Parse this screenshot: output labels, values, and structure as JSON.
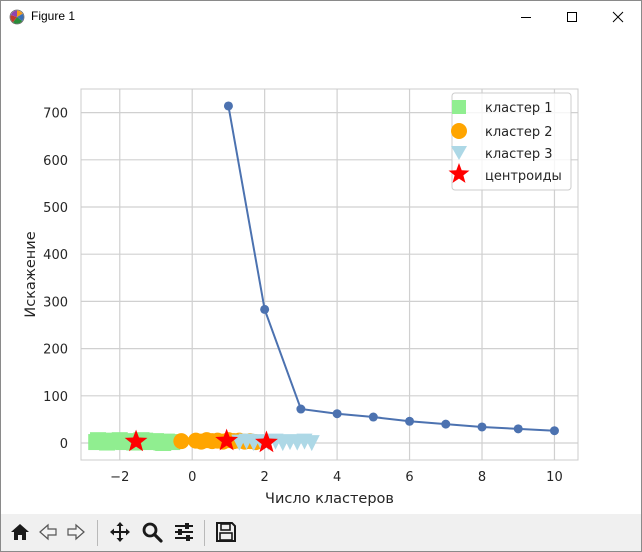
{
  "window": {
    "title": "Figure 1",
    "icon": "matplotlib-logo-icon",
    "controls": [
      "minimize-icon",
      "maximize-icon",
      "close-icon"
    ]
  },
  "toolbar": {
    "buttons": [
      {
        "name": "home-button",
        "icon": "home-icon"
      },
      {
        "name": "back-button",
        "icon": "back-arrow-icon"
      },
      {
        "name": "forward-button",
        "icon": "forward-arrow-icon"
      },
      {
        "name": "pan-button",
        "icon": "move-icon"
      },
      {
        "name": "zoom-button",
        "icon": "magnifier-icon"
      },
      {
        "name": "configure-subplots-button",
        "icon": "sliders-icon"
      },
      {
        "name": "save-button",
        "icon": "floppy-disk-icon"
      }
    ]
  },
  "chart_data": {
    "type": "scatter",
    "title": "",
    "xlabel": "Число кластеров",
    "ylabel": "Искажение",
    "xlim": [
      -3.07,
      10.65
    ],
    "ylim": [
      -36,
      750
    ],
    "xticks": [
      -2,
      0,
      2,
      4,
      6,
      8,
      10
    ],
    "xtick_labels": [
      "−2",
      "0",
      "2",
      "4",
      "6",
      "8",
      "10"
    ],
    "yticks": [
      0,
      100,
      200,
      300,
      400,
      500,
      600,
      700
    ],
    "ytick_labels": [
      "0",
      "100",
      "200",
      "300",
      "400",
      "500",
      "600",
      "700"
    ],
    "grid": true,
    "legend_position": "top-right",
    "colors": {
      "line": "#4c72b0",
      "cluster1": "#90ee90",
      "cluster2": "#ffa500",
      "cluster3": "#add8e6",
      "centroids": "#ff0000",
      "grid": "#d0d0d0",
      "axes_edge": "#cccccc"
    },
    "elbow_line": {
      "x": [
        1,
        2,
        3,
        4,
        5,
        6,
        7,
        8,
        9,
        10
      ],
      "y": [
        714,
        283,
        72,
        62,
        55,
        46,
        40,
        34,
        30,
        26
      ]
    },
    "series": [
      {
        "name": "кластер 1",
        "marker": "square",
        "color": "#90ee90",
        "x": [
          -2.65,
          -2.5,
          -2.35,
          -2.2,
          -2.05,
          -1.9,
          -1.75,
          -1.6,
          -1.45,
          -1.3,
          -1.15,
          -1.0,
          -0.85,
          -0.7,
          -0.55,
          -2.6,
          -2.0,
          -1.4,
          -0.8
        ],
        "y": [
          2,
          4,
          1,
          5,
          3,
          2,
          4,
          1,
          3,
          5,
          2,
          4,
          1,
          3,
          2,
          6,
          6,
          6,
          0
        ]
      },
      {
        "name": "кластер 2",
        "marker": "circle",
        "color": "#ffa500",
        "x": [
          -0.3,
          0.1,
          0.25,
          0.4,
          0.55,
          0.7,
          0.85,
          1.0,
          1.15,
          1.3,
          1.45,
          1.6,
          1.75
        ],
        "y": [
          4,
          5,
          3,
          6,
          4,
          5,
          3,
          6,
          4,
          5,
          3,
          4,
          2
        ]
      },
      {
        "name": "кластер 3",
        "marker": "triangle-down",
        "color": "#add8e6",
        "x": [
          1.3,
          1.5,
          1.7,
          1.9,
          2.1,
          2.3,
          2.5,
          2.7,
          2.9,
          3.1,
          3.3
        ],
        "y": [
          3,
          5,
          2,
          4,
          3,
          5,
          2,
          4,
          3,
          5,
          2
        ]
      },
      {
        "name": "центроиды",
        "marker": "star",
        "color": "#ff0000",
        "x": [
          -1.55,
          0.95,
          2.05
        ],
        "y": [
          3,
          5,
          1
        ]
      }
    ]
  }
}
